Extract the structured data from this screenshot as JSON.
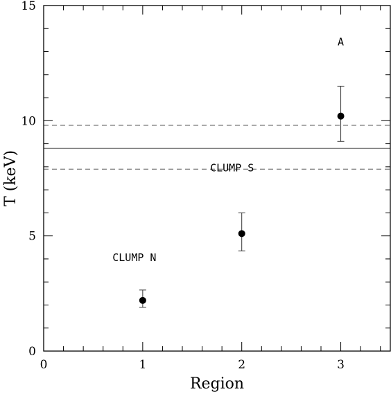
{
  "chart_data": {
    "type": "scatter",
    "xlabel": "Region",
    "ylabel": "T (keV)",
    "xlim": [
      0,
      3.5
    ],
    "ylim": [
      0,
      15
    ],
    "x_ticks": [
      0,
      1,
      2,
      3
    ],
    "x_tick_labels": [
      "0",
      "1",
      "2",
      "3"
    ],
    "y_ticks": [
      0,
      5,
      10,
      15
    ],
    "y_tick_labels": [
      "0",
      "5",
      "10",
      "15"
    ],
    "points": [
      {
        "x": 1,
        "y": 2.2,
        "y_low": 1.9,
        "y_high": 2.65,
        "label": "CLUMP N"
      },
      {
        "x": 2,
        "y": 5.1,
        "y_low": 4.35,
        "y_high": 6.0,
        "label": "CLUMP S"
      },
      {
        "x": 3,
        "y": 10.2,
        "y_low": 9.1,
        "y_high": 11.5,
        "label": "A"
      }
    ],
    "reference_lines": [
      {
        "y": 8.8,
        "style": "solid"
      },
      {
        "y": 9.8,
        "style": "dashed"
      },
      {
        "y": 7.9,
        "style": "dashed"
      }
    ],
    "grid": false,
    "legend": "none"
  }
}
